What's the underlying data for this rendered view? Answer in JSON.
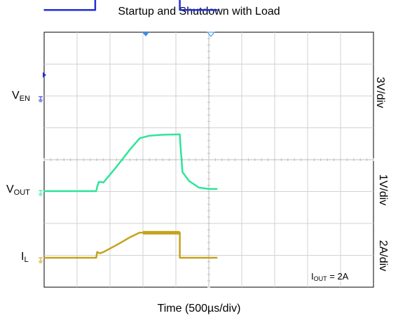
{
  "chart_data": {
    "type": "line",
    "title": "Startup and Shutdown with Load",
    "xlabel": "Time (500µs/div)",
    "x_divisions": 10,
    "y_divisions": 8,
    "grid": true,
    "series": [
      {
        "name": "EN",
        "label_main": "V",
        "label_sub": "EN",
        "scale": "3V/div",
        "color": "#1f2fd6",
        "points": [
          [
            0,
            2.72
          ],
          [
            1.55,
            2.72
          ],
          [
            1.55,
            3.72
          ],
          [
            4.12,
            3.72
          ],
          [
            4.12,
            2.72
          ],
          [
            5.25,
            2.72
          ]
        ]
      },
      {
        "name": "OUT",
        "label_main": "V",
        "label_sub": "OUT",
        "scale": "1V/div",
        "color": "#2ee59a",
        "points": [
          [
            0,
            -0.02
          ],
          [
            1.58,
            -0.02
          ],
          [
            1.62,
            0.15
          ],
          [
            1.66,
            0.27
          ],
          [
            1.72,
            0.27
          ],
          [
            1.8,
            0.25
          ],
          [
            2.2,
            0.75
          ],
          [
            2.6,
            1.28
          ],
          [
            2.9,
            1.64
          ],
          [
            3.2,
            1.72
          ],
          [
            3.6,
            1.75
          ],
          [
            4.12,
            1.76
          ],
          [
            4.14,
            1.4
          ],
          [
            4.2,
            0.58
          ],
          [
            4.4,
            0.3
          ],
          [
            4.7,
            0.09
          ],
          [
            5.0,
            0.05
          ],
          [
            5.25,
            0.05
          ]
        ]
      },
      {
        "name": "L",
        "label_main": "I",
        "label_sub": "L",
        "scale": "2A/div",
        "color": "#c4a21a",
        "points": [
          [
            0,
            0.0
          ],
          [
            1.58,
            0.0
          ],
          [
            1.61,
            0.18
          ],
          [
            1.64,
            0.16
          ],
          [
            1.7,
            0.14
          ],
          [
            1.8,
            0.18
          ],
          [
            2.2,
            0.4
          ],
          [
            2.6,
            0.64
          ],
          [
            2.9,
            0.79
          ],
          [
            3.2,
            0.79
          ],
          [
            3.6,
            0.79
          ],
          [
            4.12,
            0.79
          ],
          [
            4.12,
            0.0
          ],
          [
            5.25,
            0.0
          ]
        ]
      }
    ],
    "triggers": [
      "▼",
      "▽"
    ],
    "annotation": {
      "main": "I",
      "sub": "OUT",
      "rest": " = 2A"
    }
  }
}
